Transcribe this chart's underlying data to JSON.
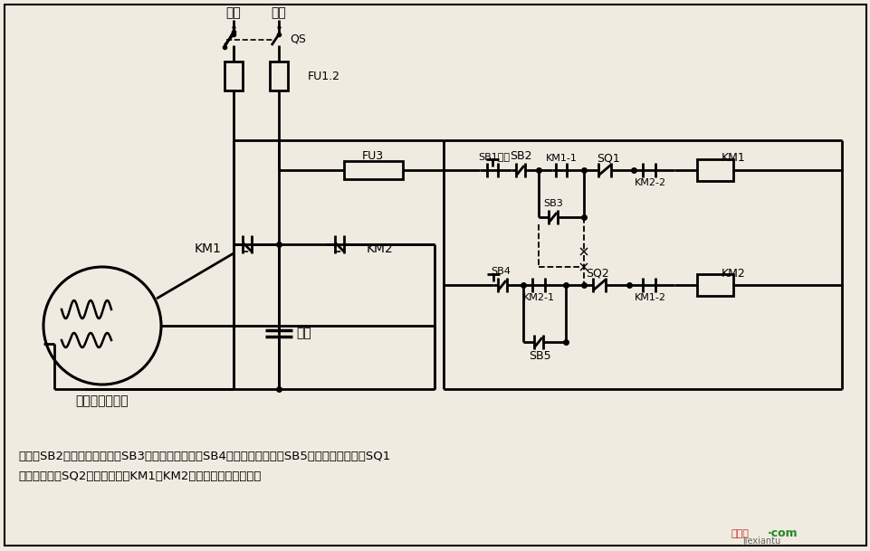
{
  "bg_color": "#f0ebe0",
  "desc1": "说明：SB2为上升启动按钮，SB3为上升点动按钮，SB4为下降启动按钮，SB5为下降点动按钮；SQ1",
  "desc2": "为最高限位，SQ2为最低限位。KM1、KM2可用中间继电器代替。",
  "motor_label": "单相电容电动机",
  "hx_label": "火线",
  "lx_label": "零线",
  "qs_label": "QS",
  "fu12_label": "FU1.2",
  "fu3_label": "FU3",
  "sb1_label": "SB1停止",
  "sb2_label": "SB2",
  "sq1_label": "SQ1",
  "km1_coil_label": "KM1",
  "km2_2_label": "KM2-2",
  "km1_1_label": "KM1-1",
  "sb3_label": "SB3",
  "sb4_label": "SB4",
  "km2_1_label": "KM2-1",
  "sq2_label": "SQ2",
  "km2_coil_label": "KM2",
  "km1_2_label": "KM1-2",
  "sb5_label": "SB5",
  "km1_label": "KM1",
  "km2_label": "KM2",
  "cap_label": "电容",
  "wm1": "接线图",
  "wm2": "·com",
  "wm3": "jiexiantu"
}
